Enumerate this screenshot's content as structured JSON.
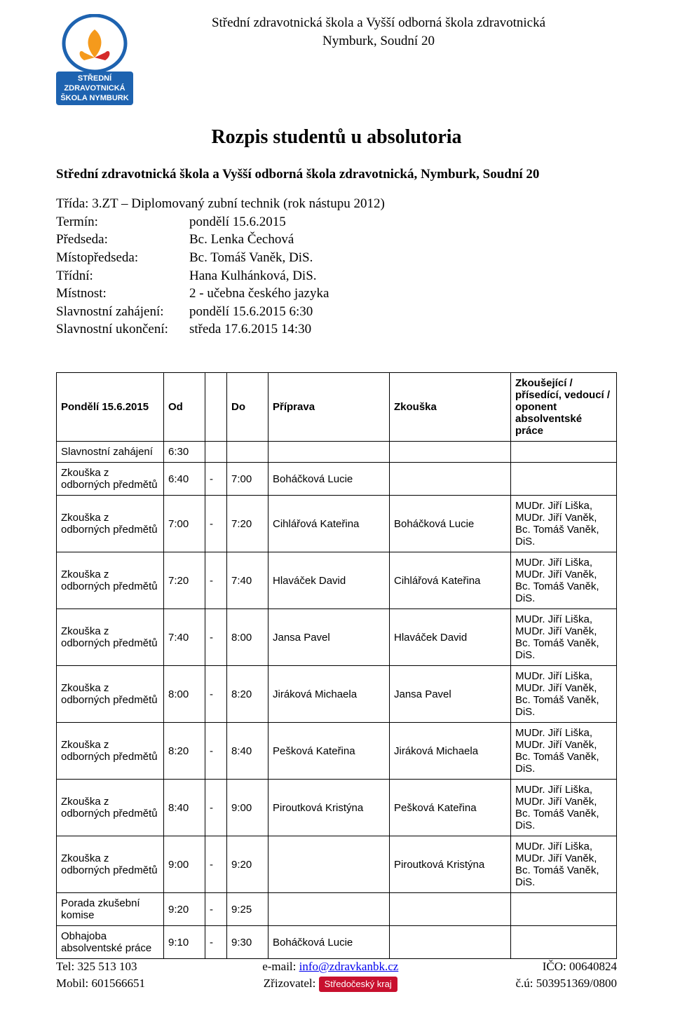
{
  "header": {
    "line1": "Střední zdravotnická škola a Vyšší odborná škola zdravotnická",
    "line2": "Nymburk, Soudní 20",
    "logo": {
      "outer_color": "#1e63b0",
      "hand_left": "#f59a1c",
      "hand_right": "#d42a2a",
      "text_bg": "#1e63b0",
      "text_color": "#ffffff",
      "line1": "STŘEDNÍ",
      "line2": "ZDRAVOTNICKÁ",
      "line3": "ŠKOLA NYMBURK"
    }
  },
  "title": "Rozpis studentů u absolutoria",
  "subtitle": "Střední zdravotnická škola  a Vyšší odborná škola zdravotnická, Nymburk, Soudní 20",
  "info": {
    "trida_label": "Třída:",
    "trida_value": "3.ZT – Diplomovaný zubní technik  (rok nástupu 2012)",
    "termin_label": "Termín:",
    "termin_value": "pondělí 15.6.2015",
    "predseda_label": "Předseda:",
    "predseda_value": "Bc. Lenka Čechová",
    "mistopredseda_label": "Místopředseda:",
    "mistopredseda_value": "Bc. Tomáš Vaněk, DiS.",
    "tridni_label": "Třídní:",
    "tridni_value": "Hana Kulhánková, DiS.",
    "mistnost_label": "Místnost:",
    "mistnost_value": "2 - učebna českého jazyka",
    "zahajeni_label": "Slavnostní zahájení:",
    "zahajeni_value": "pondělí 15.6.2015  6:30",
    "ukonceni_label": "Slavnostní ukončení:",
    "ukonceni_value": "středa 17.6.2015 14:30"
  },
  "table": {
    "headers": {
      "day": "Pondělí 15.6.2015",
      "od": "Od",
      "dash": "",
      "do": "Do",
      "priprava": "Příprava",
      "zkouska": "Zkouška",
      "examiners": "Zkoušející / přísedící, vedoucí / oponent absolventské práce"
    },
    "examiner_text": "MUDr. Jiří Liška, MUDr. Jiří Vaněk, Bc. Tomáš Vaněk, DiS.",
    "event_exam": "Zkouška z odborných předmětů",
    "rows": [
      {
        "event": "Slavnostní zahájení",
        "od": "6:30",
        "dash": "",
        "do": "",
        "prep": "",
        "exam": "",
        "examiners": ""
      },
      {
        "event": "Zkouška z odborných předmětů",
        "od": "6:40",
        "dash": "-",
        "do": "7:00",
        "prep": "Boháčková Lucie",
        "exam": "",
        "examiners": ""
      },
      {
        "event": "Zkouška z odborných předmětů",
        "od": "7:00",
        "dash": "-",
        "do": "7:20",
        "prep": "Cihlářová Kateřina",
        "exam": "Boháčková Lucie",
        "examiners": "MUDr. Jiří Liška, MUDr. Jiří Vaněk, Bc. Tomáš Vaněk, DiS."
      },
      {
        "event": "Zkouška z odborných předmětů",
        "od": "7:20",
        "dash": "-",
        "do": "7:40",
        "prep": "Hlaváček David",
        "exam": "Cihlářová Kateřina",
        "examiners": "MUDr. Jiří Liška, MUDr. Jiří Vaněk, Bc. Tomáš Vaněk, DiS."
      },
      {
        "event": "Zkouška z odborných předmětů",
        "od": "7:40",
        "dash": "-",
        "do": "8:00",
        "prep": "Jansa Pavel",
        "exam": "Hlaváček David",
        "examiners": "MUDr. Jiří Liška, MUDr. Jiří Vaněk, Bc. Tomáš Vaněk, DiS."
      },
      {
        "event": "Zkouška z odborných předmětů",
        "od": "8:00",
        "dash": "-",
        "do": "8:20",
        "prep": "Jiráková Michaela",
        "exam": "Jansa Pavel",
        "examiners": "MUDr. Jiří Liška, MUDr. Jiří Vaněk, Bc. Tomáš Vaněk, DiS."
      },
      {
        "event": "Zkouška z odborných předmětů",
        "od": "8:20",
        "dash": "-",
        "do": "8:40",
        "prep": "Pešková Kateřina",
        "exam": "Jiráková Michaela",
        "examiners": "MUDr. Jiří Liška, MUDr. Jiří Vaněk, Bc. Tomáš Vaněk, DiS."
      },
      {
        "event": "Zkouška z odborných předmětů",
        "od": "8:40",
        "dash": "-",
        "do": "9:00",
        "prep": "Piroutková Kristýna",
        "exam": "Pešková Kateřina",
        "examiners": "MUDr. Jiří Liška, MUDr. Jiří Vaněk, Bc. Tomáš Vaněk, DiS."
      },
      {
        "event": "Zkouška z odborných předmětů",
        "od": "9:00",
        "dash": "-",
        "do": "9:20",
        "prep": "",
        "exam": "Piroutková Kristýna",
        "examiners": "MUDr. Jiří Liška, MUDr. Jiří Vaněk, Bc. Tomáš Vaněk, DiS."
      },
      {
        "event": "Porada zkušební komise",
        "od": "9:20",
        "dash": "-",
        "do": "9:25",
        "prep": "",
        "exam": "",
        "examiners": ""
      },
      {
        "event": "Obhajoba absolventské práce",
        "od": "9:10",
        "dash": "-",
        "do": "9:30",
        "prep": "Boháčková Lucie",
        "exam": "",
        "examiners": ""
      }
    ]
  },
  "footer": {
    "tel_label": "Tel:",
    "tel": "325 513 103",
    "mobil_label": "Mobil:",
    "mobil": "601566651",
    "email_label": "e-mail:",
    "email": "info@zdravkanbk.cz",
    "zrizovatel_label": "Zřizovatel:",
    "badge_text": "Středočeský kraj",
    "ico_label": "IČO:",
    "ico": "00640824",
    "cu_label": "č.ú:",
    "cu": "503951369/0800"
  }
}
